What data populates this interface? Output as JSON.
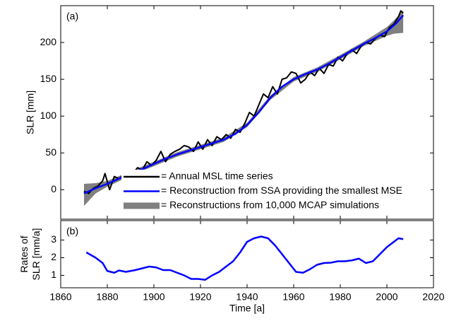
{
  "chart_data": [
    {
      "type": "line",
      "annotation": "(a)",
      "ylabel": "SLR [mm]",
      "xlim": [
        1860,
        2020
      ],
      "ylim": [
        -40,
        250
      ],
      "yticks": [
        0,
        50,
        100,
        150,
        200
      ],
      "series": [
        {
          "name": "= Reconstructions from 10,000 MCAP simulations",
          "kind": "band",
          "color": "#808080",
          "x": [
            1870,
            1875,
            1880,
            1890,
            1900,
            1910,
            1920,
            1930,
            1940,
            1950,
            1960,
            1970,
            1980,
            1990,
            2000,
            2003,
            2007
          ],
          "lower": [
            -22,
            -5,
            4,
            19,
            32,
            45,
            55,
            65,
            85,
            122,
            147,
            160,
            177,
            195,
            209,
            212,
            213
          ],
          "upper": [
            8,
            9,
            12,
            25,
            38,
            51,
            61,
            71,
            91,
            128,
            153,
            166,
            183,
            201,
            221,
            230,
            243
          ]
        },
        {
          "name": "= Annual MSL time series",
          "kind": "line",
          "color": "#000000",
          "x": [
            1870,
            1872,
            1874,
            1876,
            1878,
            1879,
            1881,
            1883,
            1885,
            1887,
            1889,
            1891,
            1893,
            1895,
            1897,
            1899,
            1901,
            1903,
            1905,
            1907,
            1909,
            1911,
            1913,
            1915,
            1917,
            1919,
            1921,
            1923,
            1925,
            1927,
            1929,
            1931,
            1933,
            1935,
            1937,
            1939,
            1941,
            1943,
            1945,
            1947,
            1949,
            1951,
            1953,
            1955,
            1957,
            1959,
            1961,
            1963,
            1965,
            1967,
            1969,
            1971,
            1973,
            1975,
            1977,
            1979,
            1981,
            1983,
            1985,
            1987,
            1989,
            1991,
            1993,
            1995,
            1997,
            1999,
            2001,
            2003,
            2005,
            2006,
            2007
          ],
          "values": [
            -2,
            -5,
            2,
            5,
            12,
            22,
            0,
            18,
            15,
            20,
            25,
            22,
            30,
            27,
            38,
            33,
            40,
            52,
            38,
            48,
            52,
            55,
            60,
            58,
            52,
            65,
            55,
            68,
            60,
            72,
            68,
            75,
            70,
            82,
            78,
            90,
            105,
            100,
            115,
            130,
            125,
            140,
            130,
            150,
            152,
            160,
            158,
            145,
            150,
            160,
            155,
            165,
            158,
            170,
            168,
            180,
            175,
            185,
            190,
            185,
            195,
            200,
            198,
            205,
            210,
            208,
            220,
            225,
            235,
            243,
            240
          ]
        },
        {
          "name": "= Reconstruction from SSA providing the smallest MSE",
          "kind": "line",
          "color": "#0000ff",
          "x": [
            1870,
            1875,
            1880,
            1885,
            1890,
            1895,
            1900,
            1905,
            1910,
            1915,
            1920,
            1925,
            1930,
            1935,
            1940,
            1945,
            1950,
            1955,
            1960,
            1965,
            1970,
            1975,
            1980,
            1985,
            1990,
            1995,
            2000,
            2004,
            2007
          ],
          "values": [
            -5,
            2,
            8,
            15,
            22,
            28,
            35,
            42,
            48,
            53,
            58,
            63,
            68,
            76,
            88,
            105,
            125,
            140,
            150,
            157,
            163,
            171,
            180,
            189,
            198,
            206,
            215,
            226,
            237
          ]
        }
      ]
    },
    {
      "type": "line",
      "annotation": "(b)",
      "ylabel": [
        "Rates of",
        "SLR [mm/a]"
      ],
      "xlabel": "Time [a]",
      "xlim": [
        1860,
        2020
      ],
      "xticks": [
        1860,
        1880,
        1900,
        1920,
        1940,
        1960,
        1980,
        2000,
        2020
      ],
      "ylim": [
        0.3,
        4.1
      ],
      "yticks": [
        1,
        2,
        3
      ],
      "series": [
        {
          "kind": "line",
          "color": "#0000ff",
          "x": [
            1871,
            1875,
            1878,
            1880,
            1883,
            1885,
            1888,
            1892,
            1895,
            1898,
            1901,
            1904,
            1907,
            1910,
            1913,
            1916,
            1919,
            1922,
            1925,
            1928,
            1931,
            1934,
            1937,
            1940,
            1943,
            1946,
            1949,
            1952,
            1955,
            1958,
            1961,
            1964,
            1967,
            1970,
            1973,
            1976,
            1979,
            1982,
            1985,
            1988,
            1991,
            1994,
            1997,
            2000,
            2003,
            2005,
            2007
          ],
          "values": [
            2.3,
            2.0,
            1.7,
            1.25,
            1.15,
            1.28,
            1.2,
            1.3,
            1.4,
            1.5,
            1.45,
            1.3,
            1.3,
            1.15,
            1.0,
            0.8,
            0.8,
            0.75,
            1.0,
            1.2,
            1.5,
            1.8,
            2.3,
            2.9,
            3.1,
            3.2,
            3.1,
            2.7,
            2.2,
            1.7,
            1.2,
            1.15,
            1.35,
            1.6,
            1.7,
            1.72,
            1.8,
            1.8,
            1.85,
            1.95,
            1.7,
            1.8,
            2.2,
            2.6,
            2.9,
            3.1,
            3.05
          ]
        }
      ]
    }
  ]
}
